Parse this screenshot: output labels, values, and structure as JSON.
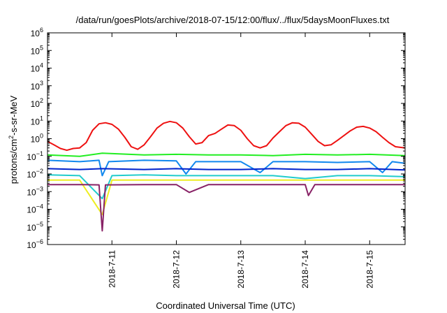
{
  "chart_data": {
    "type": "line",
    "title": "/data/run/goesPlots/archive/2018-07-15/12:00/flux/../flux/5daysMoonFluxes.txt",
    "xlabel": "Coordinated Universal Time (UTC)",
    "ylabel_parts": {
      "before": "protons/cm",
      "sup": "2",
      "after": "-s-sr-MeV"
    },
    "yscale": "log",
    "xlim": [
      10.0,
      15.55
    ],
    "ylim_exponents": [
      -6,
      6
    ],
    "y_tick_exponents": [
      -6,
      -5,
      -4,
      -3,
      -2,
      -1,
      0,
      1,
      2,
      3,
      4,
      5,
      6
    ],
    "x_ticks": [
      {
        "label": "2018-7-11",
        "value": 11
      },
      {
        "label": "2018-7-12",
        "value": 12
      },
      {
        "label": "2018-7-13",
        "value": 13
      },
      {
        "label": "2018-7-14",
        "value": 14
      },
      {
        "label": "2018-7-15",
        "value": 15
      }
    ],
    "grid": false,
    "legend": "none",
    "series": [
      {
        "color": "#ee1111",
        "points": [
          [
            10.0,
            0.7
          ],
          [
            10.1,
            0.45
          ],
          [
            10.2,
            0.28
          ],
          [
            10.3,
            0.22
          ],
          [
            10.4,
            0.28
          ],
          [
            10.5,
            0.3
          ],
          [
            10.6,
            0.6
          ],
          [
            10.7,
            3.0
          ],
          [
            10.8,
            7.0
          ],
          [
            10.9,
            8.0
          ],
          [
            11.0,
            6.5
          ],
          [
            11.1,
            3.5
          ],
          [
            11.2,
            1.2
          ],
          [
            11.3,
            0.35
          ],
          [
            11.4,
            0.25
          ],
          [
            11.5,
            0.45
          ],
          [
            11.6,
            1.3
          ],
          [
            11.7,
            4.0
          ],
          [
            11.8,
            7.5
          ],
          [
            11.9,
            9.5
          ],
          [
            12.0,
            8.0
          ],
          [
            12.1,
            4.0
          ],
          [
            12.2,
            1.3
          ],
          [
            12.3,
            0.5
          ],
          [
            12.4,
            0.6
          ],
          [
            12.5,
            1.5
          ],
          [
            12.6,
            2.0
          ],
          [
            12.7,
            3.5
          ],
          [
            12.8,
            6.0
          ],
          [
            12.9,
            5.5
          ],
          [
            13.0,
            3.0
          ],
          [
            13.1,
            1.0
          ],
          [
            13.2,
            0.4
          ],
          [
            13.3,
            0.3
          ],
          [
            13.4,
            0.4
          ],
          [
            13.5,
            1.1
          ],
          [
            13.6,
            2.5
          ],
          [
            13.7,
            5.5
          ],
          [
            13.8,
            8.0
          ],
          [
            13.9,
            7.5
          ],
          [
            14.0,
            4.5
          ],
          [
            14.1,
            1.8
          ],
          [
            14.2,
            0.7
          ],
          [
            14.3,
            0.4
          ],
          [
            14.4,
            0.45
          ],
          [
            14.5,
            0.8
          ],
          [
            14.6,
            1.5
          ],
          [
            14.7,
            2.8
          ],
          [
            14.8,
            4.5
          ],
          [
            14.9,
            5.0
          ],
          [
            15.0,
            4.0
          ],
          [
            15.1,
            2.5
          ],
          [
            15.2,
            1.2
          ],
          [
            15.3,
            0.6
          ],
          [
            15.4,
            0.35
          ],
          [
            15.55,
            0.3
          ]
        ]
      },
      {
        "color": "#22ee22",
        "points": [
          [
            10.0,
            0.12
          ],
          [
            10.5,
            0.1
          ],
          [
            10.85,
            0.15
          ],
          [
            11.5,
            0.12
          ],
          [
            12.0,
            0.13
          ],
          [
            12.5,
            0.12
          ],
          [
            13.0,
            0.12
          ],
          [
            13.5,
            0.11
          ],
          [
            14.0,
            0.13
          ],
          [
            14.5,
            0.12
          ],
          [
            15.0,
            0.13
          ],
          [
            15.55,
            0.11
          ]
        ]
      },
      {
        "color": "#1188ee",
        "points": [
          [
            10.0,
            0.06
          ],
          [
            10.5,
            0.05
          ],
          [
            10.8,
            0.06
          ],
          [
            10.85,
            0.008
          ],
          [
            10.95,
            0.05
          ],
          [
            11.5,
            0.06
          ],
          [
            12.0,
            0.055
          ],
          [
            12.15,
            0.01
          ],
          [
            12.3,
            0.05
          ],
          [
            13.0,
            0.05
          ],
          [
            13.3,
            0.012
          ],
          [
            13.5,
            0.05
          ],
          [
            14.0,
            0.05
          ],
          [
            14.5,
            0.045
          ],
          [
            15.0,
            0.05
          ],
          [
            15.2,
            0.012
          ],
          [
            15.35,
            0.05
          ],
          [
            15.55,
            0.04
          ]
        ]
      },
      {
        "color": "#0022cc",
        "points": [
          [
            10.0,
            0.02
          ],
          [
            10.5,
            0.018
          ],
          [
            10.85,
            0.02
          ],
          [
            11.5,
            0.018
          ],
          [
            12.0,
            0.02
          ],
          [
            12.5,
            0.018
          ],
          [
            13.0,
            0.018
          ],
          [
            13.5,
            0.02
          ],
          [
            14.0,
            0.018
          ],
          [
            14.5,
            0.018
          ],
          [
            15.0,
            0.02
          ],
          [
            15.55,
            0.017
          ]
        ]
      },
      {
        "color": "#22cccc",
        "points": [
          [
            10.0,
            0.009
          ],
          [
            10.5,
            0.008
          ],
          [
            10.85,
            0.0004
          ],
          [
            11.0,
            0.008
          ],
          [
            11.5,
            0.009
          ],
          [
            12.0,
            0.008
          ],
          [
            12.5,
            0.008
          ],
          [
            13.0,
            0.008
          ],
          [
            13.5,
            0.008
          ],
          [
            14.0,
            0.0055
          ],
          [
            14.5,
            0.008
          ],
          [
            15.0,
            0.008
          ],
          [
            15.55,
            0.007
          ]
        ]
      },
      {
        "color": "#eeee22",
        "points": [
          [
            10.0,
            0.0045
          ],
          [
            10.5,
            0.0045
          ],
          [
            10.85,
            5e-05
          ],
          [
            11.0,
            0.0045
          ],
          [
            11.5,
            0.0045
          ],
          [
            12.0,
            0.0045
          ],
          [
            12.5,
            0.0045
          ],
          [
            13.0,
            0.0045
          ],
          [
            13.5,
            0.0045
          ],
          [
            14.0,
            0.0045
          ],
          [
            14.5,
            0.0045
          ],
          [
            15.0,
            0.0045
          ],
          [
            15.55,
            0.0045
          ]
        ]
      },
      {
        "color": "#882266",
        "points": [
          [
            10.0,
            0.0025
          ],
          [
            10.5,
            0.0025
          ],
          [
            10.8,
            0.0024
          ],
          [
            10.85,
            6e-06
          ],
          [
            10.9,
            0.0024
          ],
          [
            11.5,
            0.0025
          ],
          [
            12.0,
            0.0025
          ],
          [
            12.2,
            0.0009
          ],
          [
            12.5,
            0.0025
          ],
          [
            13.0,
            0.0025
          ],
          [
            13.5,
            0.0025
          ],
          [
            14.0,
            0.0025
          ],
          [
            14.05,
            0.0006
          ],
          [
            14.15,
            0.0025
          ],
          [
            14.5,
            0.0025
          ],
          [
            15.0,
            0.0025
          ],
          [
            15.55,
            0.0025
          ]
        ]
      }
    ]
  }
}
